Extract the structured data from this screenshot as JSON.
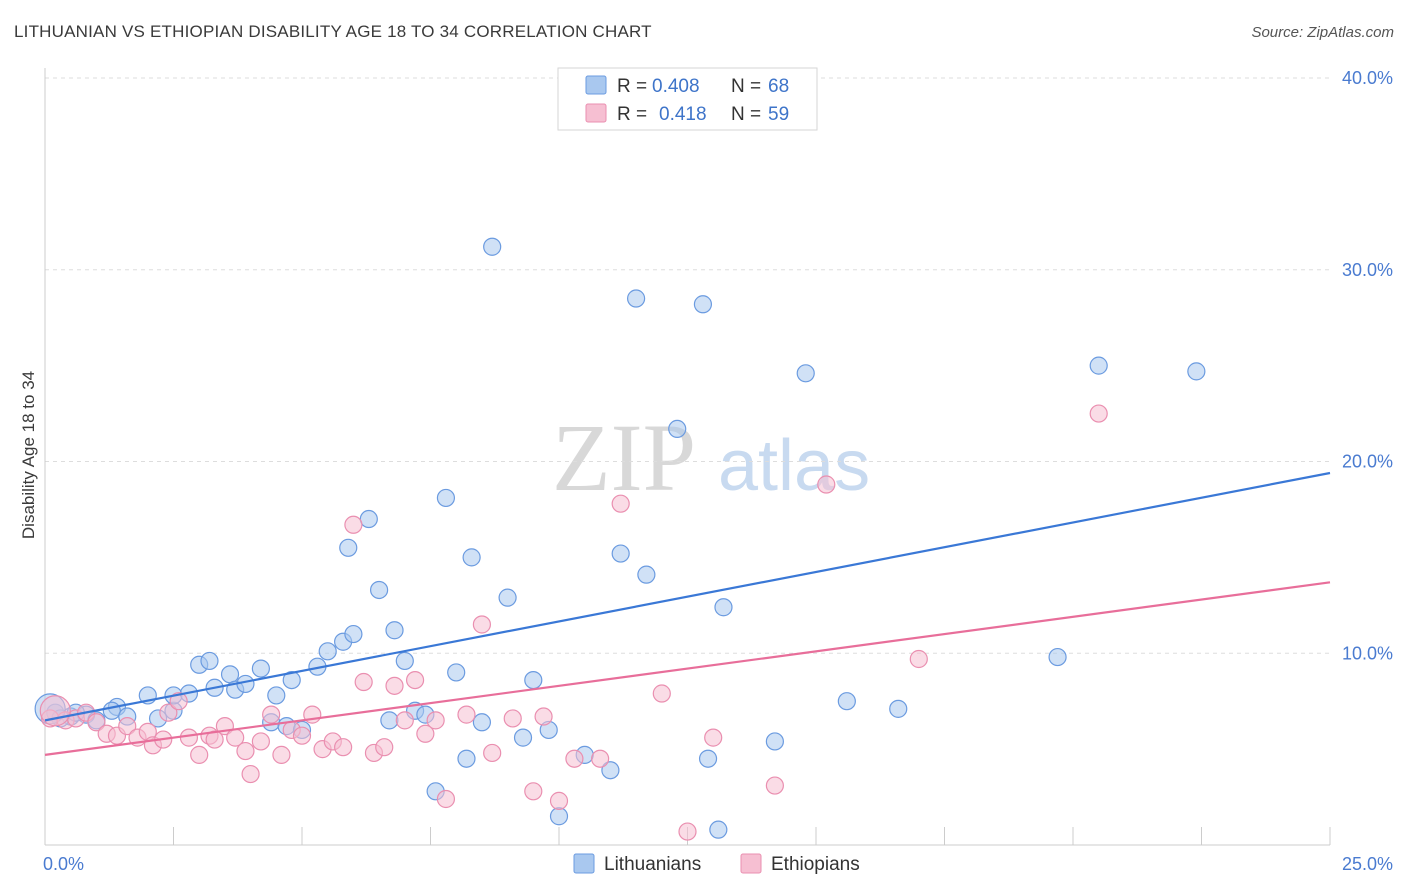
{
  "title": "LITHUANIAN VS ETHIOPIAN DISABILITY AGE 18 TO 34 CORRELATION CHART",
  "source": "Source: ZipAtlas.com",
  "watermark": {
    "zip": "ZIP",
    "atlas": "atlas"
  },
  "colors": {
    "blue_fill": "#a9c8ef",
    "blue_stroke": "#6b9be0",
    "blue_line": "#3a78d6",
    "pink_fill": "#f6bfd2",
    "pink_stroke": "#ea8fb0",
    "pink_line": "#e86e9a",
    "grid": "#dddddd"
  },
  "legend": {
    "rows": [
      {
        "r_label": "R =",
        "r_value": "0.408",
        "n_label": "N =",
        "n_value": "68"
      },
      {
        "r_label": "R =",
        "r_value": "0.418",
        "n_label": "N =",
        "n_value": "59"
      }
    ]
  },
  "bottom_legend": [
    "Lithuanians",
    "Ethiopians"
  ],
  "chart_data": {
    "type": "scatter",
    "title": "LITHUANIAN VS ETHIOPIAN DISABILITY AGE 18 TO 34 CORRELATION CHART",
    "xlabel": "",
    "ylabel": "Disability Age 18 to 34",
    "xlim": [
      0,
      25
    ],
    "ylim": [
      0,
      40
    ],
    "x_tick_labels": [
      "0.0%",
      "25.0%"
    ],
    "y_tick_labels": [
      "10.0%",
      "20.0%",
      "30.0%",
      "40.0%"
    ],
    "y_ticks": [
      10,
      20,
      30,
      40
    ],
    "grid": true,
    "legend_placement": "top-center",
    "series": [
      {
        "name": "Lithuanians",
        "r": 0.408,
        "n": 68,
        "trend": [
          [
            0,
            6.5
          ],
          [
            25,
            19.4
          ]
        ],
        "points": [
          [
            0.2,
            6.9
          ],
          [
            0.5,
            6.7
          ],
          [
            0.8,
            6.8
          ],
          [
            0.3,
            6.6
          ],
          [
            0.6,
            6.9
          ],
          [
            1.0,
            6.5
          ],
          [
            1.4,
            7.2
          ],
          [
            1.3,
            7.0
          ],
          [
            1.6,
            6.7
          ],
          [
            2.0,
            7.8
          ],
          [
            2.2,
            6.6
          ],
          [
            2.5,
            7.0
          ],
          [
            2.5,
            7.8
          ],
          [
            2.8,
            7.9
          ],
          [
            3.0,
            9.4
          ],
          [
            3.2,
            9.6
          ],
          [
            3.3,
            8.2
          ],
          [
            3.6,
            8.9
          ],
          [
            3.7,
            8.1
          ],
          [
            3.9,
            8.4
          ],
          [
            4.2,
            9.2
          ],
          [
            4.4,
            6.4
          ],
          [
            4.5,
            7.8
          ],
          [
            4.7,
            6.2
          ],
          [
            4.8,
            8.6
          ],
          [
            5.0,
            6.0
          ],
          [
            5.3,
            9.3
          ],
          [
            5.5,
            10.1
          ],
          [
            5.8,
            10.6
          ],
          [
            5.9,
            15.5
          ],
          [
            6.0,
            11.0
          ],
          [
            6.3,
            17.0
          ],
          [
            6.5,
            13.3
          ],
          [
            6.7,
            6.5
          ],
          [
            6.8,
            11.2
          ],
          [
            7.0,
            9.6
          ],
          [
            7.2,
            7.0
          ],
          [
            7.4,
            6.8
          ],
          [
            7.6,
            2.8
          ],
          [
            7.8,
            18.1
          ],
          [
            8.0,
            9.0
          ],
          [
            8.2,
            4.5
          ],
          [
            8.3,
            15.0
          ],
          [
            8.5,
            6.4
          ],
          [
            8.7,
            31.2
          ],
          [
            9.0,
            12.9
          ],
          [
            9.3,
            5.6
          ],
          [
            9.5,
            8.6
          ],
          [
            9.8,
            6.0
          ],
          [
            10.0,
            1.5
          ],
          [
            10.5,
            4.7
          ],
          [
            11.0,
            3.9
          ],
          [
            11.2,
            15.2
          ],
          [
            11.5,
            28.5
          ],
          [
            11.7,
            14.1
          ],
          [
            12.3,
            21.7
          ],
          [
            12.8,
            28.2
          ],
          [
            12.9,
            4.5
          ],
          [
            13.1,
            0.8
          ],
          [
            13.2,
            12.4
          ],
          [
            14.2,
            5.4
          ],
          [
            14.8,
            24.6
          ],
          [
            15.6,
            7.5
          ],
          [
            16.6,
            7.1
          ],
          [
            19.7,
            9.8
          ],
          [
            20.5,
            25.0
          ],
          [
            22.4,
            24.7
          ],
          [
            0.1,
            7.1
          ]
        ]
      },
      {
        "name": "Ethiopians",
        "r": 0.418,
        "n": 59,
        "trend": [
          [
            0,
            4.7
          ],
          [
            25,
            13.7
          ]
        ],
        "points": [
          [
            0.1,
            6.6
          ],
          [
            0.4,
            6.5
          ],
          [
            0.6,
            6.6
          ],
          [
            0.8,
            6.9
          ],
          [
            1.0,
            6.4
          ],
          [
            1.2,
            5.8
          ],
          [
            1.4,
            5.7
          ],
          [
            1.6,
            6.2
          ],
          [
            1.8,
            5.6
          ],
          [
            2.0,
            5.9
          ],
          [
            2.1,
            5.2
          ],
          [
            2.3,
            5.5
          ],
          [
            2.4,
            6.9
          ],
          [
            2.6,
            7.5
          ],
          [
            2.8,
            5.6
          ],
          [
            3.0,
            4.7
          ],
          [
            3.2,
            5.7
          ],
          [
            3.3,
            5.5
          ],
          [
            3.5,
            6.2
          ],
          [
            3.7,
            5.6
          ],
          [
            3.9,
            4.9
          ],
          [
            4.0,
            3.7
          ],
          [
            4.2,
            5.4
          ],
          [
            4.4,
            6.8
          ],
          [
            4.6,
            4.7
          ],
          [
            4.8,
            6.0
          ],
          [
            5.0,
            5.7
          ],
          [
            5.2,
            6.8
          ],
          [
            5.4,
            5.0
          ],
          [
            5.6,
            5.4
          ],
          [
            5.8,
            5.1
          ],
          [
            6.0,
            16.7
          ],
          [
            6.2,
            8.5
          ],
          [
            6.4,
            4.8
          ],
          [
            6.6,
            5.1
          ],
          [
            6.8,
            8.3
          ],
          [
            7.0,
            6.5
          ],
          [
            7.2,
            8.6
          ],
          [
            7.4,
            5.8
          ],
          [
            7.6,
            6.5
          ],
          [
            7.8,
            2.4
          ],
          [
            8.2,
            6.8
          ],
          [
            8.5,
            11.5
          ],
          [
            8.7,
            4.8
          ],
          [
            9.1,
            6.6
          ],
          [
            9.5,
            2.8
          ],
          [
            9.7,
            6.7
          ],
          [
            10.0,
            2.3
          ],
          [
            10.3,
            4.5
          ],
          [
            10.8,
            4.5
          ],
          [
            11.2,
            17.8
          ],
          [
            12.0,
            7.9
          ],
          [
            12.5,
            0.7
          ],
          [
            13.0,
            5.6
          ],
          [
            14.2,
            3.1
          ],
          [
            15.2,
            18.8
          ],
          [
            17.0,
            9.7
          ],
          [
            20.5,
            22.5
          ],
          [
            0.2,
            7.0
          ]
        ]
      }
    ]
  }
}
